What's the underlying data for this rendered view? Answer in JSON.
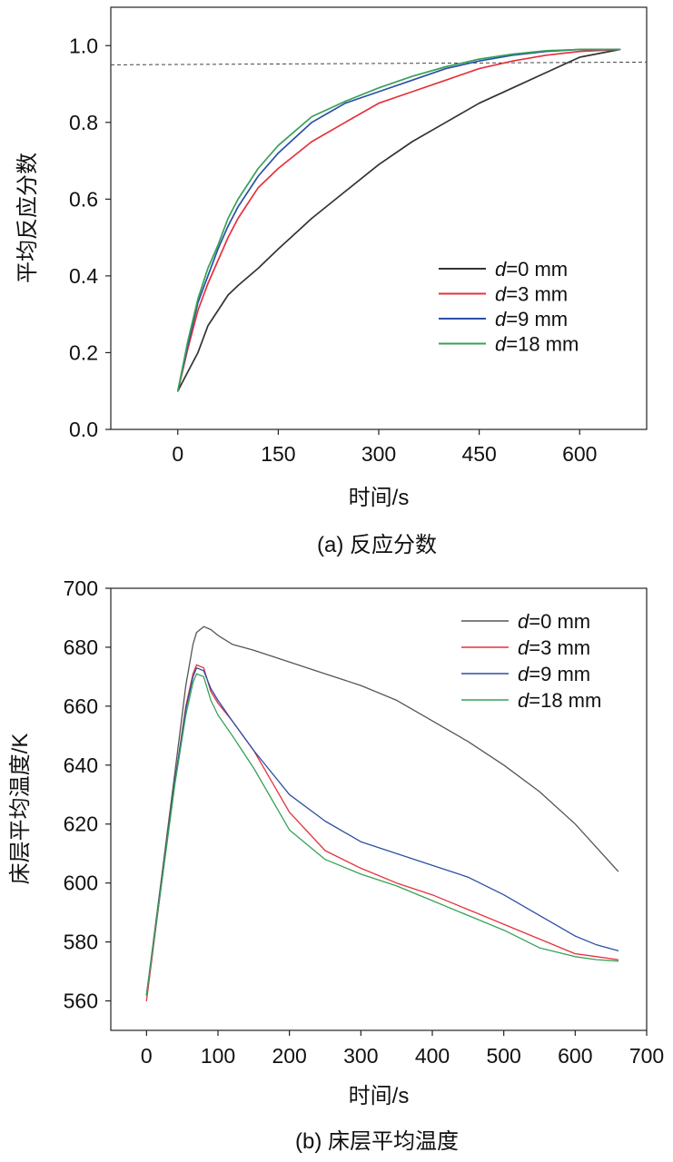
{
  "chart_data": [
    {
      "type": "line",
      "title": "",
      "caption": "(a) 反应分数",
      "xlabel": "时间/s",
      "ylabel": "平均反应分数",
      "xlim": [
        -100,
        700
      ],
      "ylim": [
        0,
        1.1
      ],
      "xticks": [
        0,
        150,
        300,
        450,
        600
      ],
      "xtick_labels": [
        "0",
        "150",
        "300",
        "450",
        "600"
      ],
      "yticks": [
        0.0,
        0.2,
        0.4,
        0.6,
        0.8,
        1.0
      ],
      "ytick_labels": [
        "0.0",
        "0.2",
        "0.4",
        "0.6",
        "0.8",
        "1.0"
      ],
      "grid": false,
      "legend": "right",
      "reference_line": {
        "y": 0.95,
        "style": "dashed",
        "color": "#444444"
      },
      "x": [
        0,
        15,
        30,
        45,
        60,
        75,
        90,
        120,
        150,
        200,
        250,
        300,
        350,
        400,
        450,
        500,
        550,
        600,
        660
      ],
      "series": [
        {
          "name": "d=0 mm",
          "color": "#333333",
          "values": [
            0.1,
            0.15,
            0.2,
            0.27,
            0.31,
            0.35,
            0.375,
            0.42,
            0.47,
            0.55,
            0.62,
            0.69,
            0.75,
            0.8,
            0.85,
            0.89,
            0.93,
            0.97,
            0.99
          ]
        },
        {
          "name": "d=3 mm",
          "color": "#e5313b",
          "values": [
            0.1,
            0.21,
            0.31,
            0.38,
            0.44,
            0.5,
            0.55,
            0.63,
            0.68,
            0.75,
            0.8,
            0.85,
            0.88,
            0.91,
            0.94,
            0.96,
            0.975,
            0.985,
            0.99
          ]
        },
        {
          "name": "d=9 mm",
          "color": "#2b4fa6",
          "values": [
            0.1,
            0.22,
            0.33,
            0.4,
            0.47,
            0.53,
            0.58,
            0.66,
            0.72,
            0.8,
            0.85,
            0.88,
            0.91,
            0.94,
            0.96,
            0.975,
            0.985,
            0.99,
            0.99
          ]
        },
        {
          "name": "d=18 mm",
          "color": "#36a257",
          "values": [
            0.1,
            0.23,
            0.34,
            0.42,
            0.48,
            0.55,
            0.6,
            0.68,
            0.74,
            0.815,
            0.855,
            0.89,
            0.92,
            0.945,
            0.965,
            0.978,
            0.987,
            0.99,
            0.99
          ]
        }
      ]
    },
    {
      "type": "line",
      "title": "",
      "caption": "(b) 床层平均温度",
      "xlabel": "时间/s",
      "ylabel": "床层平均温度/K",
      "xlim": [
        -50,
        700
      ],
      "ylim": [
        550,
        700
      ],
      "xticks": [
        0,
        100,
        200,
        300,
        400,
        500,
        600,
        700
      ],
      "xtick_labels": [
        "0",
        "100",
        "200",
        "300",
        "400",
        "500",
        "600",
        "700"
      ],
      "yticks": [
        560,
        580,
        600,
        620,
        640,
        660,
        680,
        700
      ],
      "ytick_labels": [
        "560",
        "580",
        "600",
        "620",
        "640",
        "660",
        "680",
        "700"
      ],
      "grid": false,
      "legend": "top-right",
      "x": [
        0,
        20,
        40,
        55,
        65,
        70,
        80,
        90,
        100,
        120,
        150,
        200,
        250,
        300,
        350,
        400,
        450,
        500,
        550,
        600,
        630,
        660
      ],
      "series": [
        {
          "name": "d=0 mm",
          "color": "#555555",
          "values": [
            562,
            600,
            638,
            667,
            681,
            685,
            687,
            686,
            684,
            681,
            679,
            675,
            671,
            667,
            662,
            655,
            648,
            640,
            631,
            620,
            612,
            604
          ]
        },
        {
          "name": "d=3 mm",
          "color": "#e5313b",
          "values": [
            560,
            598,
            635,
            660,
            671,
            674,
            673,
            665,
            661,
            655,
            645,
            624,
            611,
            605,
            600,
            596,
            591,
            586,
            581,
            576,
            575,
            574
          ]
        },
        {
          "name": "d=9 mm",
          "color": "#2b4fa6",
          "values": [
            562,
            598,
            635,
            659,
            670,
            673,
            672,
            666,
            662,
            655,
            645,
            630,
            621,
            614,
            610,
            606,
            602,
            596,
            589,
            582,
            579,
            577
          ]
        },
        {
          "name": "d=18 mm",
          "color": "#36a257",
          "values": [
            562,
            598,
            634,
            657,
            668,
            671,
            670,
            662,
            657,
            650,
            639,
            618,
            608,
            603,
            599,
            594,
            589,
            584,
            578,
            575,
            574,
            573.5
          ]
        }
      ]
    }
  ]
}
